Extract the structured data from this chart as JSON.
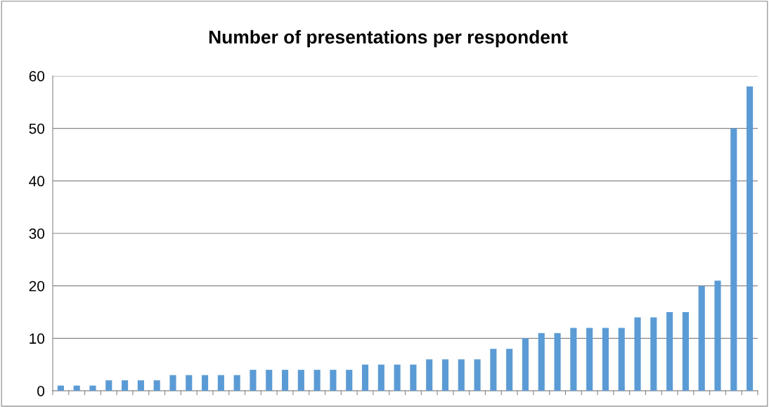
{
  "chart_data": {
    "type": "bar",
    "title": "Number of presentations per respondent",
    "categories": [
      null,
      null,
      null,
      null,
      null,
      null,
      null,
      null,
      null,
      null,
      null,
      null,
      null,
      null,
      null,
      null,
      null,
      null,
      null,
      null,
      null,
      null,
      null,
      null,
      null,
      null,
      null,
      null,
      null,
      null,
      null,
      null,
      null,
      null,
      null,
      null,
      null,
      null,
      null,
      null,
      null,
      null,
      null,
      null
    ],
    "values": [
      1,
      1,
      1,
      2,
      2,
      2,
      2,
      3,
      3,
      3,
      3,
      3,
      4,
      4,
      4,
      4,
      4,
      4,
      4,
      5,
      5,
      5,
      5,
      6,
      6,
      6,
      6,
      8,
      8,
      10,
      11,
      11,
      12,
      12,
      12,
      12,
      14,
      14,
      15,
      15,
      20,
      21,
      50,
      58
    ],
    "color": "#5b9bd5",
    "ylim": [
      0,
      60
    ],
    "yticks": [
      0,
      10,
      20,
      30,
      40,
      50,
      60
    ],
    "grid": "y"
  }
}
